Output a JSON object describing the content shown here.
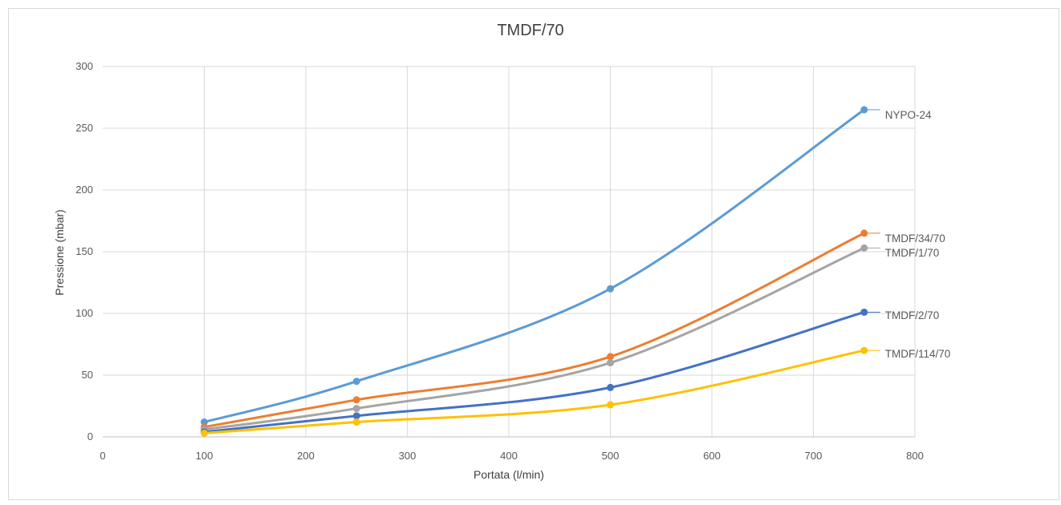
{
  "chart_data": {
    "type": "line",
    "title": "TMDF/70",
    "xlabel": "Portata (l/min)",
    "ylabel": "Pressione (mbar)",
    "xlim": [
      0,
      800
    ],
    "ylim": [
      0,
      300
    ],
    "xticks": [
      0,
      100,
      200,
      300,
      400,
      500,
      600,
      700,
      800
    ],
    "yticks": [
      0,
      50,
      100,
      150,
      200,
      250,
      300
    ],
    "grid": true,
    "legend": "labels at right end of each line",
    "x": [
      100,
      250,
      500,
      750
    ],
    "series": [
      {
        "name": "NYPO-24",
        "color": "#5b9bd5",
        "values": [
          12,
          45,
          120,
          265
        ]
      },
      {
        "name": "TMDF/34/70",
        "color": "#ed7d31",
        "values": [
          8,
          30,
          65,
          165
        ]
      },
      {
        "name": "TMDF/1/70",
        "color": "#a5a5a5",
        "values": [
          6,
          23,
          60,
          153
        ]
      },
      {
        "name": "TMDF/2/70",
        "color": "#4472c4",
        "values": [
          4,
          17,
          40,
          101
        ]
      },
      {
        "name": "TMDF/114/70",
        "color": "#ffc000",
        "values": [
          3,
          12,
          26,
          70
        ]
      }
    ]
  }
}
